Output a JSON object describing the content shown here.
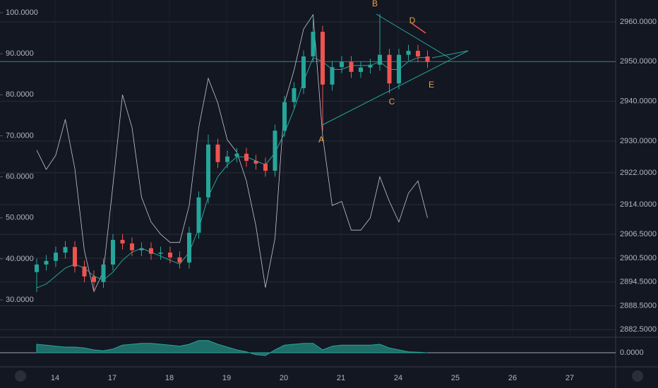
{
  "chart_data": {
    "type": "candlestick",
    "categories": [
      "14",
      "17",
      "18",
      "19",
      "20",
      "21",
      "24",
      "25",
      "26",
      "27"
    ],
    "candles": {
      "up_color": "#26a69a",
      "down_color": "#ef5350",
      "open": [
        2897.0,
        2898.9,
        2899.8,
        2901.9,
        2903.3,
        2898.4,
        2895.9,
        2894.5,
        2898.9,
        2905.1,
        2904.2,
        2902.5,
        2903.0,
        2901.6,
        2901.9,
        2900.7,
        2899.4,
        2906.9,
        2915.8,
        2929.1,
        2924.7,
        2926.1,
        2926.8,
        2925.0,
        2924.3,
        2922.5,
        2932.6,
        2939.8,
        2943.3,
        2951.3,
        2957.5,
        2944.2,
        2948.6,
        2949.9,
        2947.4,
        2948.5,
        2949.2,
        2951.7,
        2944.5,
        2951.7,
        2952.7,
        2951.3
      ],
      "high": [
        2900.4,
        2901.3,
        2903.4,
        2904.8,
        2904.8,
        2899.9,
        2897.4,
        2900.4,
        2906.6,
        2906.6,
        2905.7,
        2904.5,
        2904.5,
        2903.4,
        2903.4,
        2902.2,
        2908.4,
        2917.3,
        2931.6,
        2930.6,
        2927.6,
        2928.3,
        2928.3,
        2926.5,
        2925.8,
        2934.1,
        2941.3,
        2944.8,
        2952.8,
        2960.8,
        2959.0,
        2950.1,
        2951.4,
        2951.4,
        2950.0,
        2950.7,
        2962.0,
        2953.2,
        2953.2,
        2954.2,
        2954.2,
        2952.8
      ],
      "low": [
        2892.0,
        2897.4,
        2898.3,
        2900.4,
        2896.9,
        2894.4,
        2892.0,
        2893.0,
        2897.4,
        2902.7,
        2901.0,
        2901.0,
        2900.1,
        2900.1,
        2899.2,
        2897.9,
        2897.9,
        2905.4,
        2914.3,
        2923.2,
        2923.2,
        2924.6,
        2923.5,
        2922.8,
        2921.0,
        2921.0,
        2931.1,
        2938.3,
        2941.8,
        2949.8,
        2932.5,
        2942.7,
        2947.1,
        2945.9,
        2945.9,
        2947.0,
        2947.7,
        2942.0,
        2943.0,
        2950.2,
        2949.8,
        2948.4
      ],
      "close": [
        2898.9,
        2899.8,
        2901.9,
        2903.3,
        2898.4,
        2895.9,
        2894.5,
        2898.9,
        2905.1,
        2904.2,
        2902.5,
        2903.0,
        2901.6,
        2901.9,
        2900.7,
        2899.4,
        2906.9,
        2915.8,
        2929.1,
        2924.7,
        2926.1,
        2926.8,
        2925.0,
        2924.3,
        2922.5,
        2932.6,
        2939.8,
        2943.3,
        2951.3,
        2957.5,
        2944.2,
        2948.6,
        2949.9,
        2947.4,
        2948.5,
        2949.2,
        2951.7,
        2944.5,
        2951.7,
        2952.7,
        2951.3,
        2949.9
      ]
    },
    "moving_average": {
      "color": "#26a69a",
      "values": [
        2893,
        2894,
        2896,
        2898,
        2899,
        2898,
        2896,
        2895,
        2897,
        2900,
        2902,
        2903,
        2902,
        2901,
        2900,
        2899,
        2902,
        2908,
        2916,
        2921,
        2924,
        2926,
        2926,
        2925,
        2924,
        2927,
        2932,
        2938,
        2945,
        2951,
        2950,
        2948,
        2948,
        2949,
        2949,
        2949,
        2950,
        2948,
        2948,
        2950,
        2951,
        2951
      ]
    },
    "oscillator": {
      "color": "#c3c7d1",
      "axis": "y2",
      "values": [
        66.5,
        61.8,
        65.3,
        74,
        62,
        42,
        32,
        37,
        58,
        80,
        72,
        55,
        49,
        46,
        44,
        44,
        53,
        72,
        84,
        78,
        69,
        66,
        59,
        48,
        33,
        45,
        78,
        86,
        96,
        99.5,
        70,
        53,
        54,
        47,
        47,
        50,
        60,
        54,
        49,
        56,
        59,
        50
      ]
    },
    "price_line": 2950,
    "ylim": [
      2880.6,
      2965.5
    ],
    "yticks": [
      {
        "value": 2960,
        "label": "2960.0000"
      },
      {
        "value": 2950,
        "label": "2950.0000"
      },
      {
        "value": 2940,
        "label": "2940.0000"
      },
      {
        "value": 2930,
        "label": "2930.0000"
      },
      {
        "value": 2922,
        "label": "2922.0000"
      },
      {
        "value": 2914,
        "label": "2914.0000"
      },
      {
        "value": 2906.5,
        "label": "2906.5000"
      },
      {
        "value": 2900.5,
        "label": "2900.5000"
      },
      {
        "value": 2894.5,
        "label": "2894.5000"
      },
      {
        "value": 2888.5,
        "label": "2888.5000"
      },
      {
        "value": 2882.5,
        "label": "2882.5000"
      }
    ],
    "y2lim": [
      20.9,
      103.1
    ],
    "y2ticks": [
      {
        "value": 100,
        "label": "100.0000"
      },
      {
        "value": 90,
        "label": "90.0000"
      },
      {
        "value": 80,
        "label": "80.0000"
      },
      {
        "value": 70,
        "label": "70.0000"
      },
      {
        "value": 60,
        "label": "60.0000"
      },
      {
        "value": 50,
        "label": "50.0000"
      },
      {
        "value": 40,
        "label": "40.0000"
      },
      {
        "value": 30,
        "label": "30.0000"
      }
    ],
    "lower_pane": {
      "type": "area",
      "color": "#26a69a",
      "values": [
        0.9,
        0.8,
        0.7,
        0.6,
        0.6,
        0.5,
        0.3,
        0.2,
        0.4,
        0.8,
        0.9,
        1.0,
        1.0,
        0.9,
        0.8,
        0.7,
        0.9,
        1.3,
        1.3,
        0.9,
        0.6,
        0.3,
        0.1,
        -0.2,
        -0.3,
        0.3,
        0.8,
        0.9,
        1.0,
        1.0,
        0.3,
        0.7,
        0.8,
        0.8,
        0.8,
        0.8,
        0.9,
        0.5,
        0.3,
        0.1,
        0.05,
        0.0
      ],
      "ylim": [
        -1.5,
        1.5
      ],
      "yticks": [
        {
          "value": 0,
          "label": "0.0000"
        }
      ]
    },
    "annotations": [
      "A",
      "B",
      "C",
      "D",
      "E"
    ]
  }
}
